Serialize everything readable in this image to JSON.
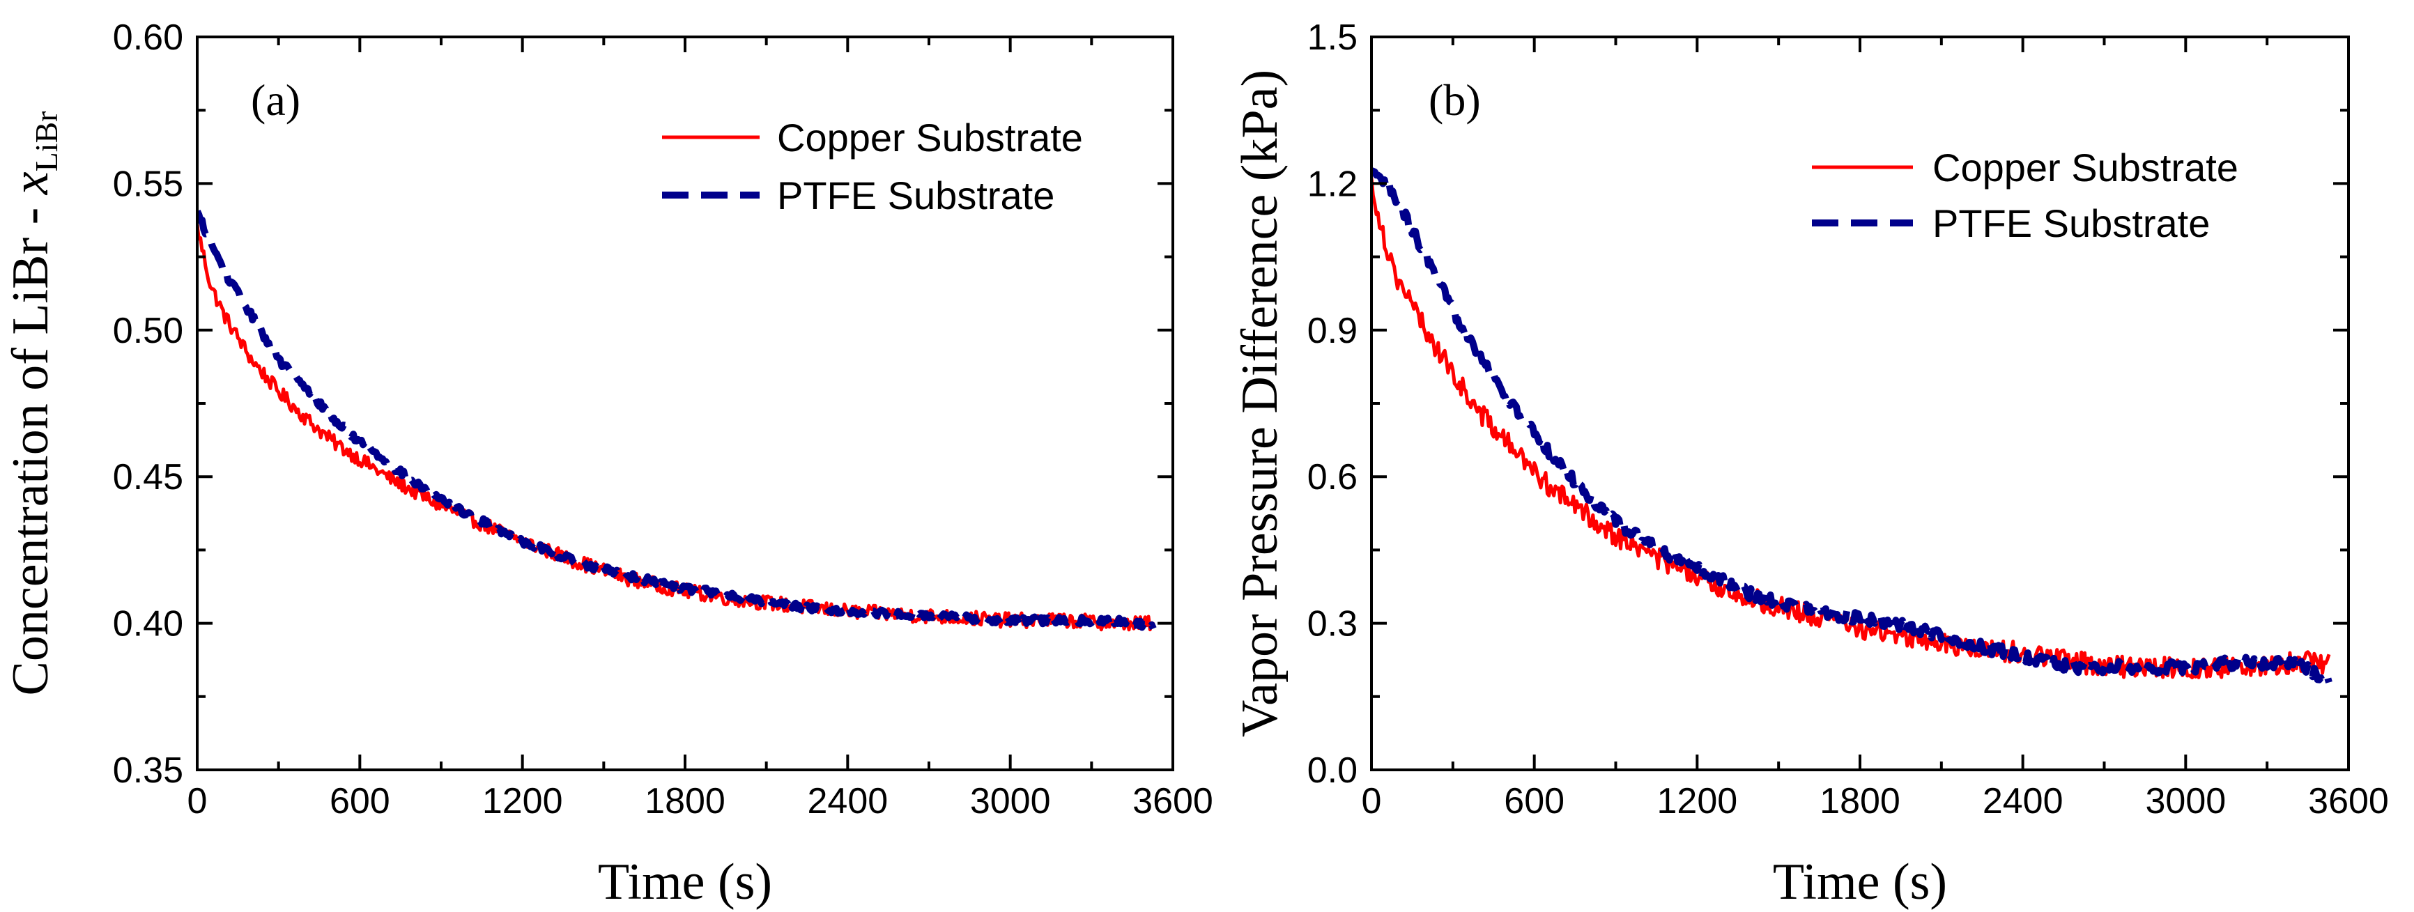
{
  "chart_data": [
    {
      "type": "line",
      "panel_label": "(a)",
      "xlabel": "Time (s)",
      "ylabel_main": "Concentration of LiBr - ",
      "ylabel_var": "x",
      "ylabel_sub": "LiBr",
      "xlim": [
        0,
        3600
      ],
      "ylim": [
        0.35,
        0.6
      ],
      "xticks": [
        0,
        600,
        1200,
        1800,
        2400,
        3000,
        3600
      ],
      "xtick_labels": [
        "0",
        "600",
        "1200",
        "1800",
        "2400",
        "3000",
        "3600"
      ],
      "yticks": [
        0.35,
        0.4,
        0.45,
        0.5,
        0.55,
        0.6
      ],
      "ytick_labels": [
        "0.35",
        "0.40",
        "0.45",
        "0.50",
        "0.55",
        "0.60"
      ],
      "legend_position": "top-right",
      "series": [
        {
          "name": "Copper Substrate",
          "color": "#ff0000",
          "style": "solid",
          "noise": 0.0025,
          "x": [
            0,
            50,
            100,
            200,
            300,
            400,
            500,
            600,
            700,
            800,
            900,
            1000,
            1200,
            1400,
            1600,
            1800,
            2000,
            2200,
            2400,
            2600,
            2800,
            3000,
            3200,
            3400,
            3530
          ],
          "y": [
            0.535,
            0.515,
            0.505,
            0.49,
            0.479,
            0.47,
            0.462,
            0.456,
            0.45,
            0.445,
            0.44,
            0.436,
            0.428,
            0.421,
            0.415,
            0.411,
            0.408,
            0.406,
            0.404,
            0.403,
            0.402,
            0.401,
            0.401,
            0.4,
            0.4
          ]
        },
        {
          "name": "PTFE Substrate",
          "color": "#00008b",
          "style": "dashed",
          "noise": 0.0012,
          "x": [
            0,
            50,
            100,
            200,
            300,
            400,
            500,
            600,
            700,
            800,
            900,
            1000,
            1200,
            1400,
            1600,
            1800,
            2000,
            2200,
            2400,
            2600,
            2800,
            3000,
            3200,
            3400,
            3530
          ],
          "y": [
            0.54,
            0.53,
            0.52,
            0.505,
            0.49,
            0.48,
            0.47,
            0.462,
            0.455,
            0.448,
            0.442,
            0.437,
            0.428,
            0.421,
            0.416,
            0.412,
            0.409,
            0.406,
            0.404,
            0.403,
            0.402,
            0.401,
            0.401,
            0.401,
            0.399
          ]
        }
      ]
    },
    {
      "type": "line",
      "panel_label": "(b)",
      "xlabel": "Time (s)",
      "ylabel_main": "Vapor Pressure Difference (kPa)",
      "ylabel_var": "",
      "ylabel_sub": "",
      "xlim": [
        0,
        3600
      ],
      "ylim": [
        0.0,
        1.5
      ],
      "xticks": [
        0,
        600,
        1200,
        1800,
        2400,
        3000,
        3600
      ],
      "xtick_labels": [
        "0",
        "600",
        "1200",
        "1800",
        "2400",
        "3000",
        "3600"
      ],
      "yticks": [
        0.0,
        0.3,
        0.6,
        0.9,
        1.2,
        1.5
      ],
      "ytick_labels": [
        "0.0",
        "0.3",
        "0.6",
        "0.9",
        "1.2",
        "1.5"
      ],
      "legend_position": "top-right",
      "series": [
        {
          "name": "Copper Substrate",
          "color": "#ff0000",
          "style": "solid",
          "noise": 0.022,
          "x": [
            0,
            50,
            100,
            200,
            300,
            400,
            500,
            600,
            700,
            800,
            900,
            1000,
            1200,
            1400,
            1600,
            1800,
            2000,
            2200,
            2400,
            2600,
            2800,
            3000,
            3200,
            3400,
            3530
          ],
          "y": [
            1.2,
            1.08,
            1.0,
            0.9,
            0.81,
            0.73,
            0.67,
            0.61,
            0.56,
            0.52,
            0.48,
            0.45,
            0.39,
            0.35,
            0.32,
            0.29,
            0.27,
            0.25,
            0.24,
            0.22,
            0.21,
            0.21,
            0.21,
            0.22,
            0.22
          ]
        },
        {
          "name": "PTFE Substrate",
          "color": "#00008b",
          "style": "dashed",
          "noise": 0.012,
          "x": [
            0,
            50,
            100,
            200,
            300,
            400,
            500,
            600,
            700,
            800,
            900,
            1000,
            1200,
            1400,
            1600,
            1800,
            2000,
            2200,
            2400,
            2600,
            2800,
            3000,
            3200,
            3400,
            3530
          ],
          "y": [
            1.22,
            1.2,
            1.16,
            1.05,
            0.94,
            0.85,
            0.76,
            0.69,
            0.62,
            0.56,
            0.51,
            0.47,
            0.41,
            0.36,
            0.33,
            0.31,
            0.29,
            0.26,
            0.23,
            0.21,
            0.21,
            0.21,
            0.22,
            0.22,
            0.18
          ]
        }
      ]
    }
  ]
}
